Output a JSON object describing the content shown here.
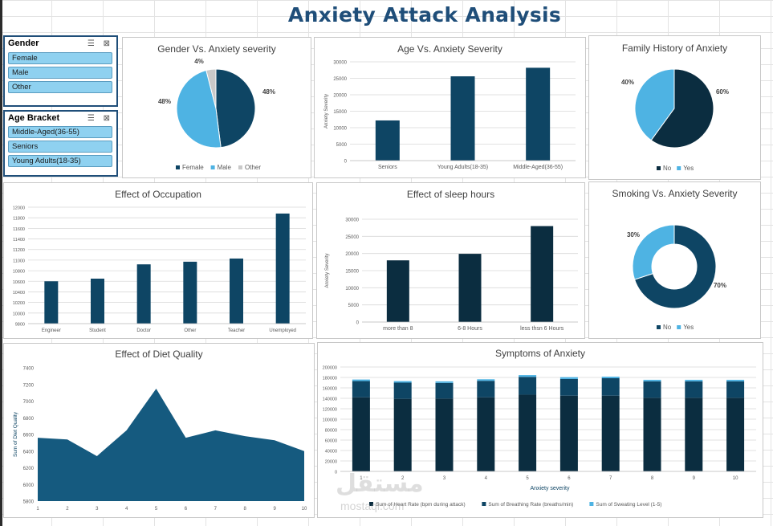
{
  "title": "Anxiety Attack Analysis",
  "colors": {
    "dark": "#0e4564",
    "darker": "#0b2d40",
    "light": "#4eb3e3",
    "grey": "#c9c9c9",
    "slicer": "#8fd1f0"
  },
  "slicers": {
    "gender": {
      "header": "Gender",
      "items": [
        "Female",
        "Male",
        "Other"
      ]
    },
    "age": {
      "header": "Age Bracket",
      "items": [
        "Middle-Aged(36-55)",
        "Seniors",
        "Young Adults(18-35)"
      ]
    }
  },
  "watermark": {
    "text": "مستقل",
    "sub": "mostaql.com"
  },
  "chart_data": [
    {
      "id": "gender",
      "type": "pie",
      "title": "Gender Vs. Anxiety severity",
      "labels": [
        "Female",
        "Male",
        "Other"
      ],
      "values": [
        48,
        48,
        4
      ],
      "data_labels": [
        "48%",
        "48%",
        "4%"
      ],
      "legend": "bottom"
    },
    {
      "id": "age",
      "type": "bar",
      "title": "Age Vs. Anxiety Severity",
      "ylabel": "Anxiety Severity",
      "categories": [
        "Seniors",
        "Young Adults(18-35)",
        "Middle-Aged(36-55)"
      ],
      "values": [
        12200,
        25600,
        28200
      ],
      "ylim": [
        0,
        30000
      ],
      "yticks": [
        "0",
        "5000",
        "10000",
        "15000",
        "20000",
        "25000",
        "30000"
      ],
      "grid": true
    },
    {
      "id": "family",
      "type": "pie",
      "title": "Family History of Anxiety",
      "labels": [
        "No",
        "Yes"
      ],
      "values": [
        60,
        40
      ],
      "data_labels": [
        "60%",
        "40%"
      ],
      "legend": "bottom"
    },
    {
      "id": "occupation",
      "type": "bar",
      "title": "Effect of Occupation",
      "categories": [
        "Engineer",
        "Student",
        "Doctor",
        "Other",
        "Teacher",
        "Unemployed"
      ],
      "values": [
        10600,
        10650,
        10920,
        10970,
        11030,
        11880
      ],
      "ylim": [
        9800,
        12000
      ],
      "yticks": [
        "9800",
        "10000",
        "10200",
        "10400",
        "10600",
        "10800",
        "11000",
        "11200",
        "11400",
        "11600",
        "11800",
        "12000"
      ],
      "grid": true
    },
    {
      "id": "sleep",
      "type": "bar",
      "title": "Effect of sleep hours",
      "ylabel": "Anxiety Severity",
      "categories": [
        "more than 8",
        "6-8 Hours",
        "less thsn 6 Hours"
      ],
      "values": [
        18000,
        19900,
        28000
      ],
      "ylim": [
        0,
        30000
      ],
      "yticks": [
        "0",
        "5000",
        "10000",
        "15000",
        "20000",
        "25000",
        "30000"
      ],
      "grid": true
    },
    {
      "id": "smoking",
      "type": "pie",
      "title": "Smoking Vs. Anxiety Severity",
      "labels": [
        "No",
        "Yes"
      ],
      "values": [
        70,
        30
      ],
      "data_labels": [
        "70%",
        "30%"
      ],
      "legend": "bottom",
      "donut": true
    },
    {
      "id": "diet",
      "type": "area",
      "title": "Effect of Diet Quality",
      "ylabel": "Sum of Diet Quality",
      "x": [
        "1",
        "2",
        "3",
        "4",
        "5",
        "6",
        "7",
        "8",
        "9",
        "10"
      ],
      "values": [
        6560,
        6540,
        6340,
        6650,
        7150,
        6560,
        6650,
        6580,
        6530,
        6400
      ],
      "ylim": [
        5800,
        7400
      ],
      "yticks": [
        "5800",
        "6000",
        "6200",
        "6400",
        "6600",
        "6800",
        "7000",
        "7200",
        "7400"
      ],
      "grid": false
    },
    {
      "id": "symptoms",
      "type": "bar",
      "stacked": true,
      "title": "Symptoms of Anxiety",
      "xlabel": "Anxiety severity",
      "categories": [
        "1",
        "2",
        "3",
        "4",
        "5",
        "6",
        "7",
        "8",
        "9",
        "10"
      ],
      "series": [
        {
          "name": "Sum of Heart Rate (bpm during attack)",
          "values": [
            142000,
            139000,
            139500,
            142000,
            147000,
            145000,
            145000,
            141000,
            141000,
            141000
          ]
        },
        {
          "name": "Sum of Breathing Rate (breaths/min)",
          "values": [
            31000,
            31000,
            30000,
            31500,
            34000,
            32000,
            33500,
            31500,
            31500,
            31500
          ]
        },
        {
          "name": "Sum of Sweating Level (1-5)",
          "values": [
            3000,
            3000,
            3000,
            3000,
            3500,
            3500,
            3000,
            3000,
            3000,
            3000
          ]
        }
      ],
      "ylim": [
        0,
        200000
      ],
      "yticks": [
        "0",
        "20000",
        "40000",
        "60000",
        "80000",
        "100000",
        "120000",
        "140000",
        "160000",
        "180000",
        "200000"
      ],
      "grid": true,
      "legend": "bottom"
    }
  ]
}
